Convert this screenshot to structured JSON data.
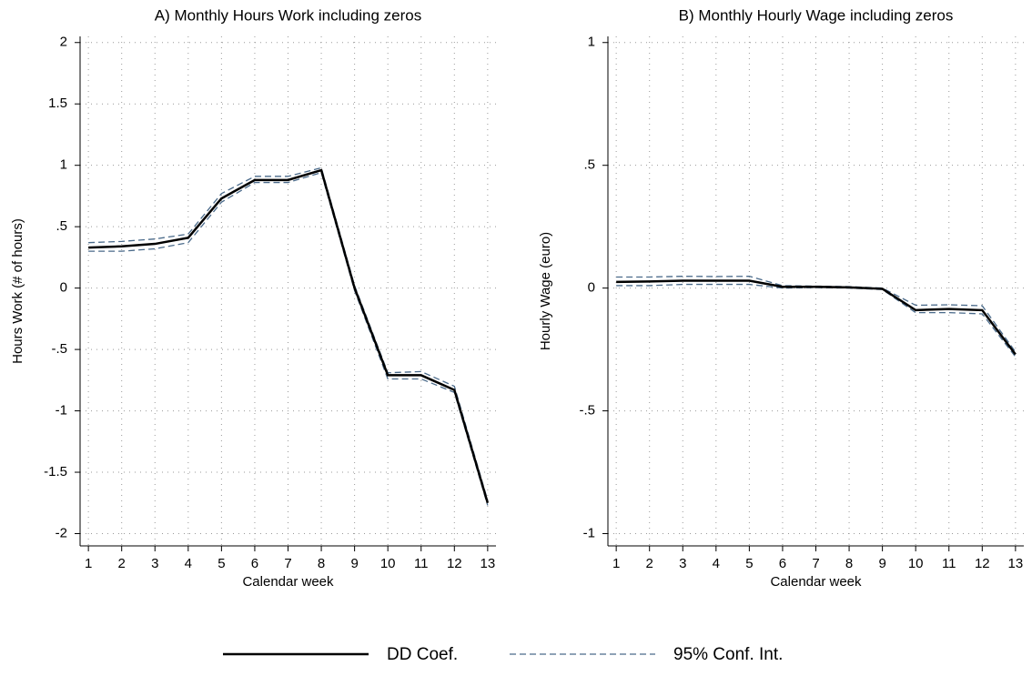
{
  "chart_data": [
    {
      "type": "line",
      "title": "A) Monthly Hours Work including zeros",
      "xlabel": "Calendar week",
      "ylabel": "Hours Work (# of hours)",
      "x": [
        1,
        2,
        3,
        4,
        5,
        6,
        7,
        8,
        9,
        10,
        11,
        12,
        13
      ],
      "xlim": [
        0.75,
        13.25
      ],
      "xticks": [
        1,
        2,
        3,
        4,
        5,
        6,
        7,
        8,
        9,
        10,
        11,
        12,
        13
      ],
      "ylim": [
        -2.1,
        2.05
      ],
      "yticks": [
        2,
        1.5,
        1,
        {
          "value": 0.5,
          "label": ".5"
        },
        0,
        {
          "value": -0.5,
          "label": "-.5"
        },
        -1,
        -1.5,
        -2
      ],
      "grid": true,
      "series": [
        {
          "name": "DD Coef.",
          "color": "#000000",
          "values": [
            0.33,
            0.34,
            0.36,
            0.41,
            0.73,
            0.88,
            0.88,
            0.96,
            0.0,
            -0.71,
            -0.71,
            -0.83,
            -1.75
          ]
        },
        {
          "name": "95% Conf. Int.",
          "color": "#4a6a8a",
          "upper": [
            0.37,
            0.38,
            0.4,
            0.44,
            0.77,
            0.91,
            0.91,
            0.98,
            0.02,
            -0.69,
            -0.68,
            -0.8,
            -1.73
          ],
          "lower": [
            0.3,
            0.3,
            0.32,
            0.37,
            0.7,
            0.86,
            0.86,
            0.94,
            -0.02,
            -0.74,
            -0.74,
            -0.85,
            -1.77
          ]
        }
      ]
    },
    {
      "type": "line",
      "title": "B) Monthly Hourly Wage including zeros",
      "xlabel": "Calendar week",
      "ylabel": "Hourly Wage (euro)",
      "x": [
        1,
        2,
        3,
        4,
        5,
        6,
        7,
        8,
        9,
        10,
        11,
        12,
        13
      ],
      "xlim": [
        0.75,
        13.25
      ],
      "xticks": [
        1,
        2,
        3,
        4,
        5,
        6,
        7,
        8,
        9,
        10,
        11,
        12,
        13
      ],
      "ylim": [
        -1.05,
        1.025
      ],
      "yticks": [
        1,
        {
          "value": 0.5,
          "label": ".5"
        },
        0,
        {
          "value": -0.5,
          "label": "-.5"
        },
        -1
      ],
      "grid": true,
      "series": [
        {
          "color": "#000000",
          "values": [
            0.025,
            0.027,
            0.03,
            0.03,
            0.03,
            0.005,
            0.005,
            0.003,
            -0.003,
            -0.09,
            -0.085,
            -0.09,
            -0.27
          ]
        },
        {
          "color": "#4a6a8a",
          "upper": [
            0.045,
            0.045,
            0.048,
            0.047,
            0.048,
            0.01,
            0.008,
            0.006,
            0.0,
            -0.07,
            -0.068,
            -0.072,
            -0.26
          ],
          "lower": [
            0.01,
            0.01,
            0.015,
            0.015,
            0.015,
            0.0,
            0.002,
            0.0,
            -0.006,
            -0.1,
            -0.1,
            -0.105,
            -0.28
          ]
        }
      ]
    }
  ]
}
